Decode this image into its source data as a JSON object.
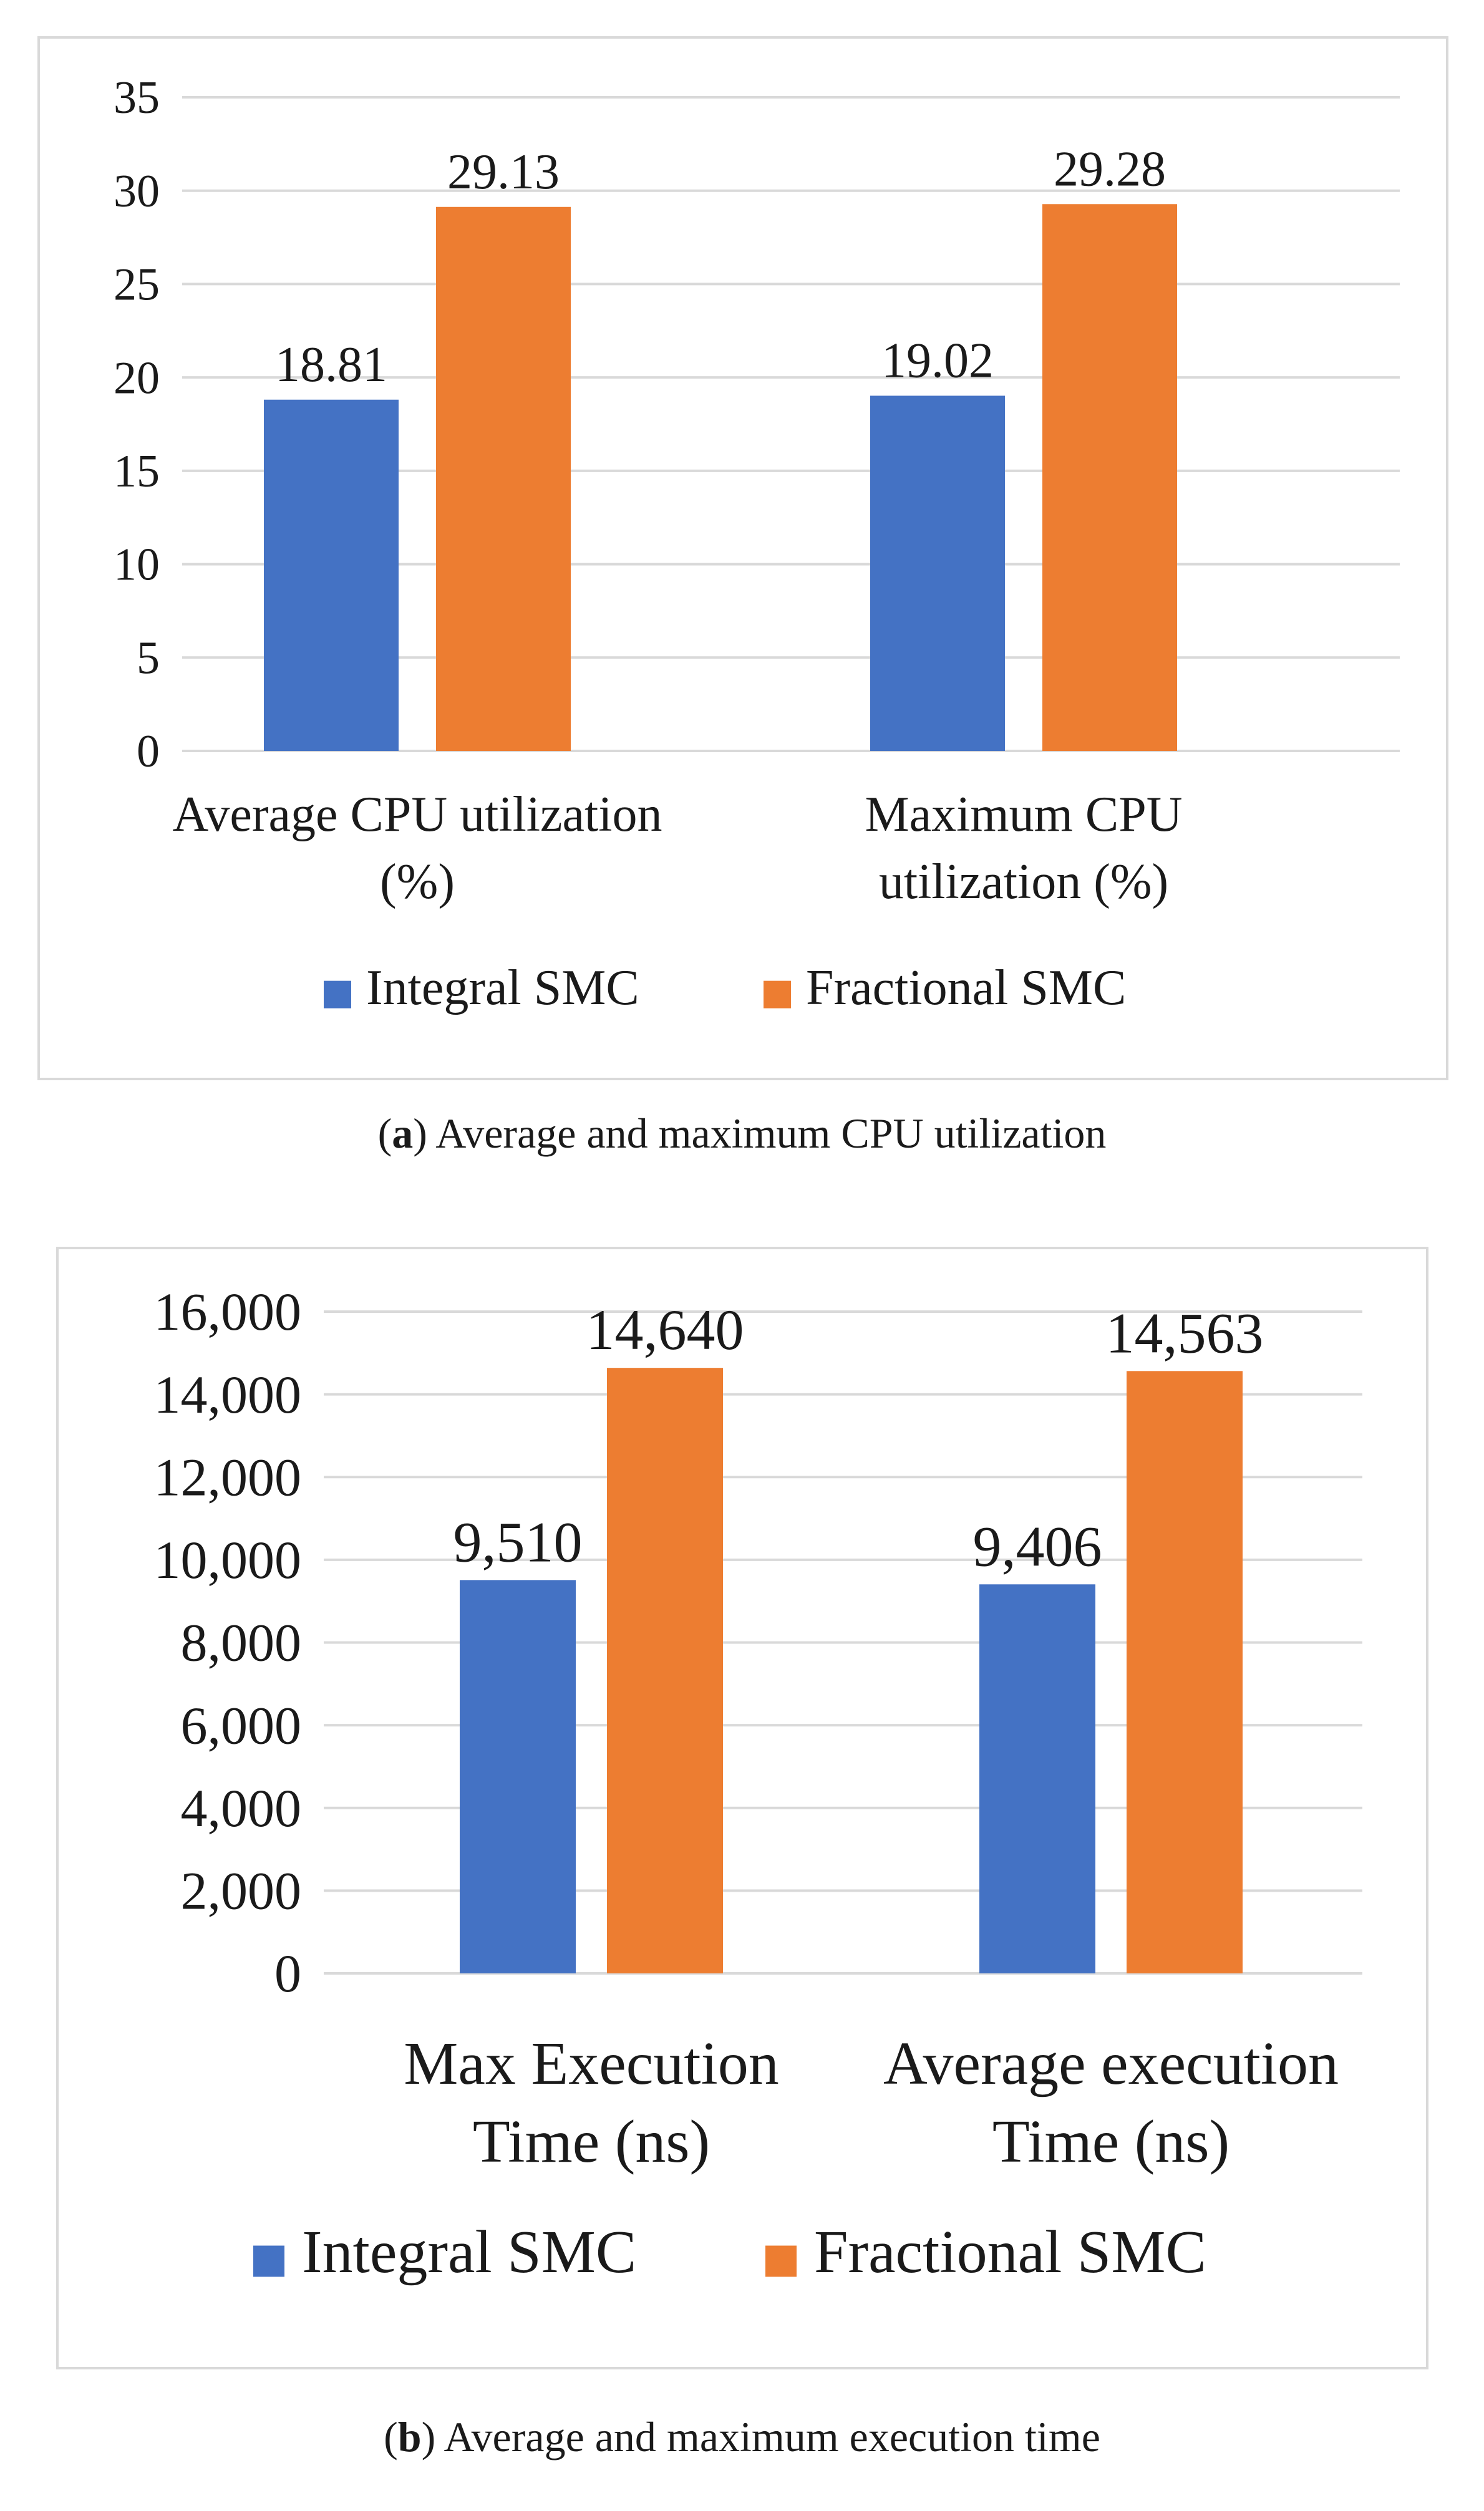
{
  "chart_data": [
    {
      "type": "bar",
      "categories": [
        "Average CPU utilization (%)",
        "Maximum CPU utilization (%)"
      ],
      "category_lines": [
        [
          "Average CPU utilization",
          "(%)"
        ],
        [
          "Maximum CPU",
          "utilization (%)"
        ]
      ],
      "series": [
        {
          "name": "Integral SMC",
          "color": "#4472c4",
          "values": [
            18.81,
            19.02
          ],
          "labels": [
            "18.81",
            "19.02"
          ]
        },
        {
          "name": "Fractional SMC",
          "color": "#ed7d31",
          "values": [
            29.13,
            29.28
          ],
          "labels": [
            "29.13",
            "29.28"
          ]
        }
      ],
      "ylim": [
        0,
        35
      ],
      "yticks": [
        0,
        5,
        10,
        15,
        20,
        25,
        30,
        35
      ],
      "ytick_labels": [
        "0",
        "5",
        "10",
        "15",
        "20",
        "25",
        "30",
        "35"
      ],
      "grid": true,
      "legend": "bottom",
      "caption_label": "a",
      "caption_text": "Average and maximum CPU utilization"
    },
    {
      "type": "bar",
      "categories": [
        "Max Execution Time (ns)",
        "Average execution Time (ns)"
      ],
      "category_lines": [
        [
          "Max Execution",
          "Time (ns)"
        ],
        [
          "Average execution",
          "Time (ns)"
        ]
      ],
      "series": [
        {
          "name": "Integral SMC",
          "color": "#4472c4",
          "values": [
            9510,
            9406
          ],
          "labels": [
            "9,510",
            "9,406"
          ]
        },
        {
          "name": "Fractional SMC",
          "color": "#ed7d31",
          "values": [
            14640,
            14563
          ],
          "labels": [
            "14,640",
            "14,563"
          ]
        }
      ],
      "ylim": [
        0,
        16000
      ],
      "yticks": [
        0,
        2000,
        4000,
        6000,
        8000,
        10000,
        12000,
        14000,
        16000
      ],
      "ytick_labels": [
        "0",
        "2,000",
        "4,000",
        "6,000",
        "8,000",
        "10,000",
        "12,000",
        "14,000",
        "16,000"
      ],
      "grid": true,
      "legend": "bottom",
      "caption_label": "b",
      "caption_text": "Average and maximum execution time"
    }
  ]
}
